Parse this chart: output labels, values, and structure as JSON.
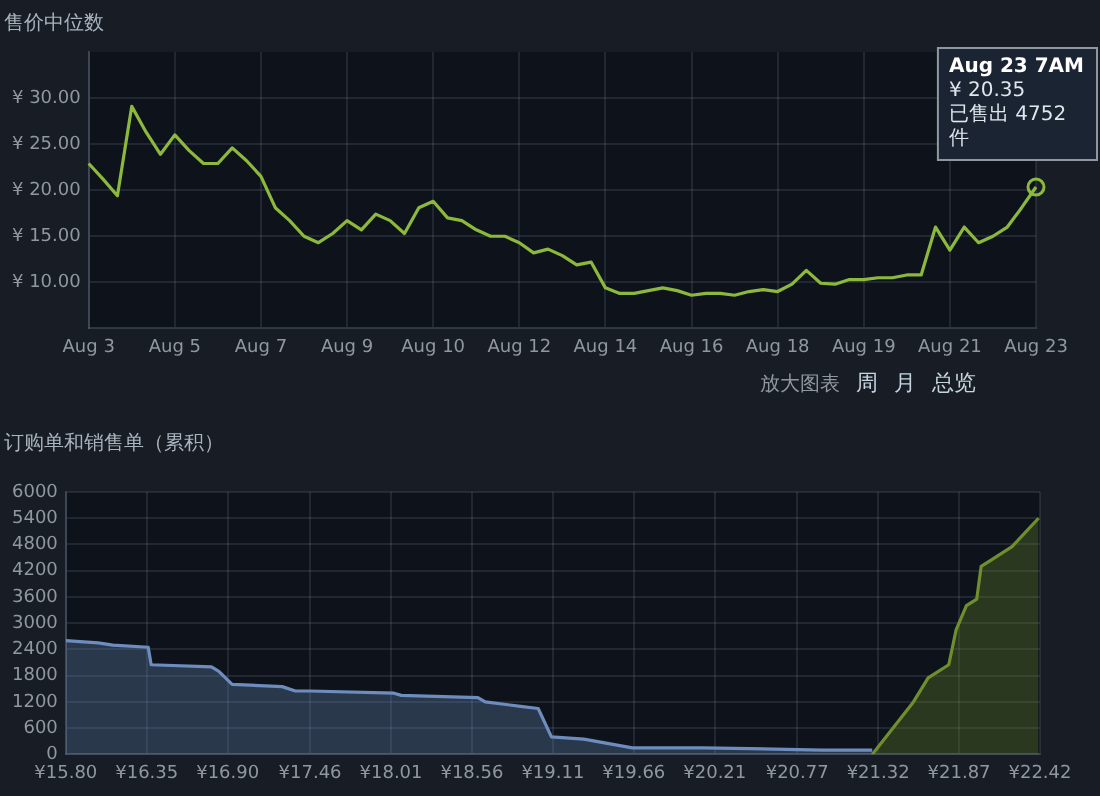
{
  "chart_data": [
    {
      "type": "line",
      "title": "售价中位数",
      "categories": [
        "Aug 3",
        null,
        null,
        null,
        null,
        null,
        "Aug 5",
        null,
        null,
        null,
        null,
        null,
        "Aug 7",
        null,
        null,
        null,
        null,
        null,
        "Aug 9",
        null,
        null,
        null,
        null,
        null,
        "Aug 10",
        null,
        null,
        null,
        null,
        null,
        "Aug 12",
        null,
        null,
        null,
        null,
        null,
        "Aug 14",
        null,
        null,
        null,
        null,
        null,
        "Aug 16",
        null,
        null,
        null,
        null,
        null,
        "Aug 18",
        null,
        null,
        null,
        null,
        null,
        "Aug 19",
        null,
        null,
        null,
        null,
        null,
        "Aug 21",
        null,
        null,
        null,
        null,
        null,
        "Aug 23"
      ],
      "series": [
        {
          "color": "#8cb83c",
          "values": [
            22.9,
            21.2,
            19.4,
            29.1,
            26.3,
            23.9,
            26.0,
            24.3,
            22.9,
            22.9,
            24.6,
            23.2,
            21.5,
            18.1,
            16.7,
            15.0,
            14.3,
            15.3,
            16.7,
            15.7,
            17.4,
            16.7,
            15.3,
            18.1,
            18.8,
            17.0,
            16.7,
            15.7,
            15.0,
            15.0,
            14.3,
            13.2,
            13.6,
            12.9,
            11.9,
            12.2,
            9.4,
            8.8,
            8.8,
            9.1,
            9.4,
            9.1,
            8.6,
            8.8,
            8.8,
            8.6,
            9.0,
            9.2,
            9.0,
            9.8,
            11.3,
            9.9,
            9.8,
            10.3,
            10.3,
            10.5,
            10.5,
            10.8,
            10.8,
            16.0,
            13.5,
            16.0,
            14.3,
            15.0,
            16.0,
            18.1,
            20.35
          ]
        }
      ],
      "ylim": [
        5,
        35
      ],
      "yticks": [
        {
          "value": 10,
          "label": "¥ 10.00"
        },
        {
          "value": 15,
          "label": "¥ 15.00"
        },
        {
          "value": 20,
          "label": "¥ 20.00"
        },
        {
          "value": 25,
          "label": "¥ 25.00"
        },
        {
          "value": 30,
          "label": "¥ 30.00"
        }
      ],
      "grid": true,
      "legend": false,
      "marker": "none",
      "line_style": "solid",
      "annotations": [
        {
          "text": "Aug 23 7AM\n¥ 20.35\n已售出 4752\n件",
          "x": "Aug 23",
          "y": 20.35
        },
        "放大图表",
        "周",
        "月",
        "总览"
      ]
    },
    {
      "type": "area",
      "title": "订购单和销售单（累积）",
      "series": [
        {
          "color": "#6d8dbf",
          "x": [
            15.8,
            16.02,
            16.12,
            16.36,
            16.38,
            16.79,
            16.84,
            16.93,
            17.27,
            17.36,
            17.46,
            18.03,
            18.08,
            18.6,
            18.65,
            18.89,
            19.01,
            19.1,
            19.32,
            19.65,
            20.13,
            20.94,
            21.28
          ],
          "values": [
            2600,
            2550,
            2500,
            2450,
            2050,
            2000,
            1900,
            1600,
            1550,
            1450,
            1450,
            1400,
            1350,
            1300,
            1200,
            1100,
            1050,
            400,
            350,
            150,
            150,
            100,
            100
          ]
        },
        {
          "color": "#6e8f2c",
          "x": [
            21.28,
            21.42,
            21.56,
            21.66,
            21.8,
            21.85,
            21.92,
            21.99,
            22.02,
            22.09,
            22.23,
            22.41
          ],
          "values": [
            0,
            600,
            1200,
            1750,
            2050,
            2850,
            3400,
            3550,
            4300,
            4450,
            4750,
            5400
          ]
        }
      ],
      "xlim": [
        15.8,
        22.42
      ],
      "xticks": [
        {
          "value": 15.8,
          "label": "¥15.80"
        },
        {
          "value": 16.35,
          "label": "¥16.35"
        },
        {
          "value": 16.9,
          "label": "¥16.90"
        },
        {
          "value": 17.46,
          "label": "¥17.46"
        },
        {
          "value": 18.01,
          "label": "¥18.01"
        },
        {
          "value": 18.56,
          "label": "¥18.56"
        },
        {
          "value": 19.11,
          "label": "¥19.11"
        },
        {
          "value": 19.66,
          "label": "¥19.66"
        },
        {
          "value": 20.21,
          "label": "¥20.21"
        },
        {
          "value": 20.77,
          "label": "¥20.77"
        },
        {
          "value": 21.32,
          "label": "¥21.32"
        },
        {
          "value": 21.87,
          "label": "¥21.87"
        },
        {
          "value": 22.42,
          "label": "¥22.42"
        }
      ],
      "ylim": [
        0,
        6000
      ],
      "yticks": [
        0,
        600,
        1200,
        1800,
        2400,
        3000,
        3600,
        4200,
        4800,
        5400,
        6000
      ],
      "grid": true,
      "legend": false,
      "marker": "none",
      "line_style": "solid"
    }
  ]
}
